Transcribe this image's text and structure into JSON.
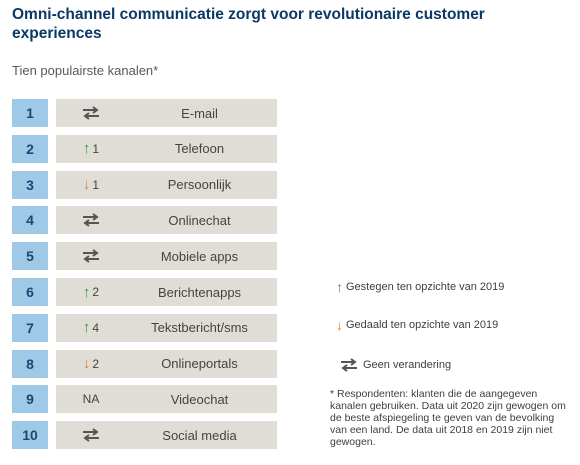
{
  "title": "Omni-channel communicatie zorgt voor revolutionaire customer experiences",
  "subtitle": "Tien populairste kanalen*",
  "colors": {
    "rank_bg": "#9ecae8",
    "cell_bg": "#e0dcd6",
    "up": "#3f9a3c",
    "down": "#e8841a",
    "title": "#0b3866"
  },
  "chart_data": {
    "type": "table",
    "title": "Omni-channel communicatie zorgt voor revolutionaire customer experiences",
    "subtitle": "Tien populairste kanalen*",
    "rows": [
      {
        "rank": "1",
        "change_type": "same",
        "change_text": "",
        "channel": "E-mail"
      },
      {
        "rank": "2",
        "change_type": "up",
        "change_text": "1",
        "channel": "Telefoon"
      },
      {
        "rank": "3",
        "change_type": "down",
        "change_text": "1",
        "channel": "Persoonlijk"
      },
      {
        "rank": "4",
        "change_type": "same",
        "change_text": "",
        "channel": "Onlinechat"
      },
      {
        "rank": "5",
        "change_type": "same",
        "change_text": "",
        "channel": "Mobiele apps"
      },
      {
        "rank": "6",
        "change_type": "up",
        "change_text": "2",
        "channel": "Berichtenapps"
      },
      {
        "rank": "7",
        "change_type": "up",
        "change_text": "4",
        "channel": "Tekstbericht/sms"
      },
      {
        "rank": "8",
        "change_type": "down",
        "change_text": "2",
        "channel": "Onlineportals"
      },
      {
        "rank": "9",
        "change_type": "na",
        "change_text": "NA",
        "channel": "Videochat"
      },
      {
        "rank": "10",
        "change_type": "same",
        "change_text": "",
        "channel": "Social media"
      }
    ]
  },
  "legend": {
    "up": "Gestegen ten opzichte van 2019",
    "down": "Gedaald ten opzichte van 2019",
    "same": "Geen verandering"
  },
  "footnote": "* Respondenten: klanten die de aangegeven kanalen gebruiken. Data uit 2020 zijn gewogen om de beste afspiegeling te geven van de bevolking van een land. De data uit 2018 en 2019 zijn niet gewogen."
}
